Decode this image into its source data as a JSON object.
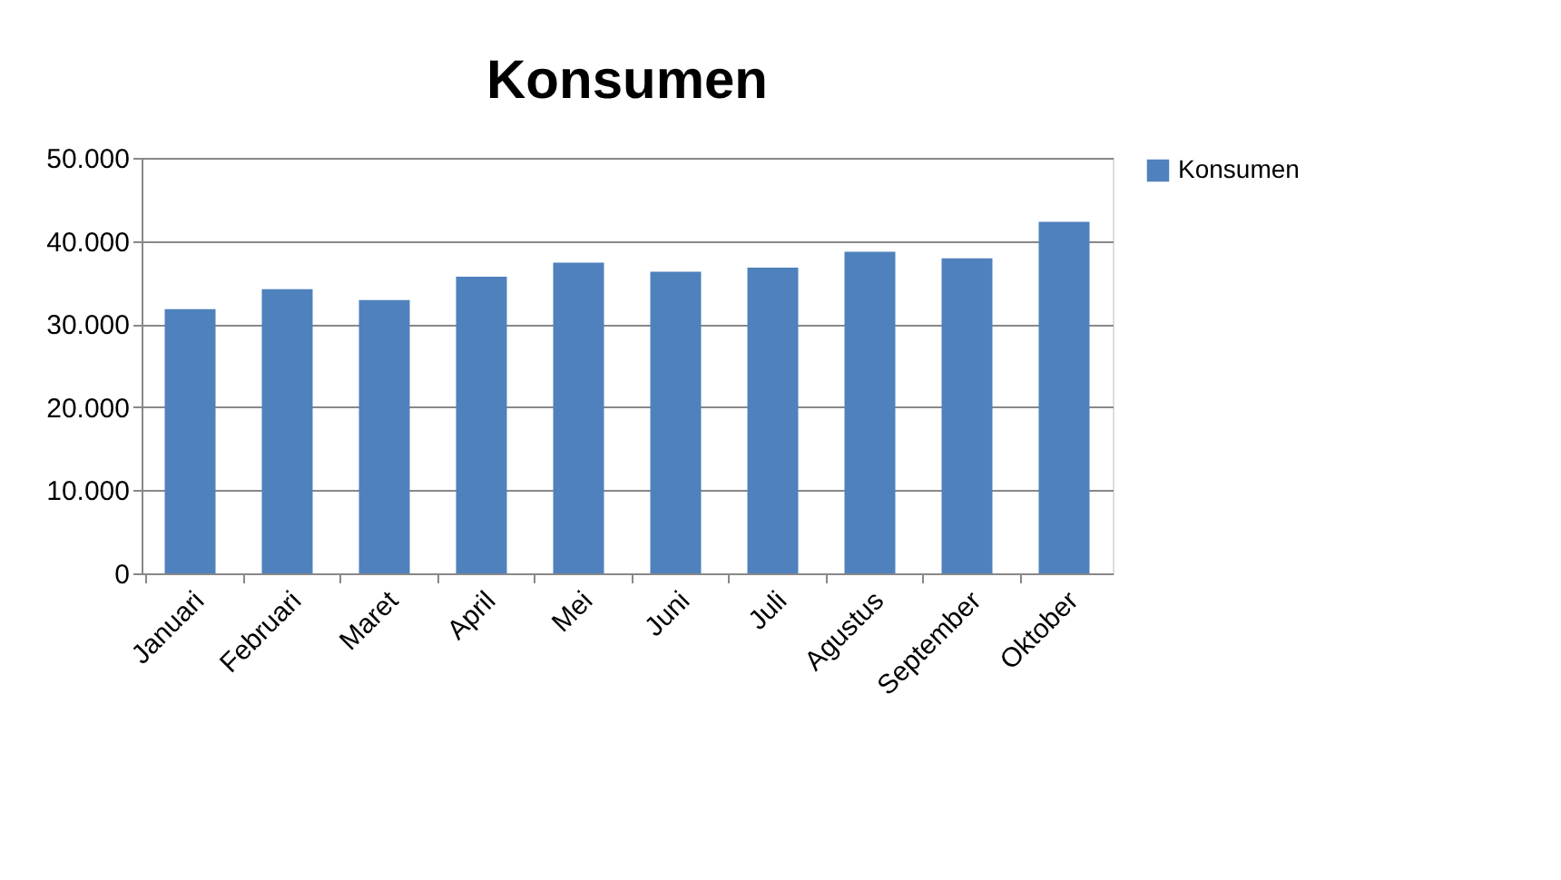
{
  "chart_data": {
    "type": "bar",
    "title": "Konsumen",
    "categories": [
      "Januari",
      "Februari",
      "Maret",
      "April",
      "Mei",
      "Juni",
      "Juli",
      "Agustus",
      "September",
      "Oktober"
    ],
    "series": [
      {
        "name": "Konsumen",
        "color": "#4f81bd",
        "values": [
          31800,
          34200,
          32900,
          35700,
          37400,
          36300,
          36800,
          38700,
          37900,
          42300
        ]
      }
    ],
    "ylim": [
      0,
      50000
    ],
    "yticks": [
      0,
      {
        "value": 10000,
        "label": "10.000"
      },
      {
        "value": 20000,
        "label": "20.000"
      },
      {
        "value": 30000,
        "label": "30.000"
      },
      {
        "value": 40000,
        "label": "40.000"
      },
      {
        "value": 50000,
        "label": "50.000"
      }
    ],
    "grid": "y",
    "legend": "right"
  }
}
